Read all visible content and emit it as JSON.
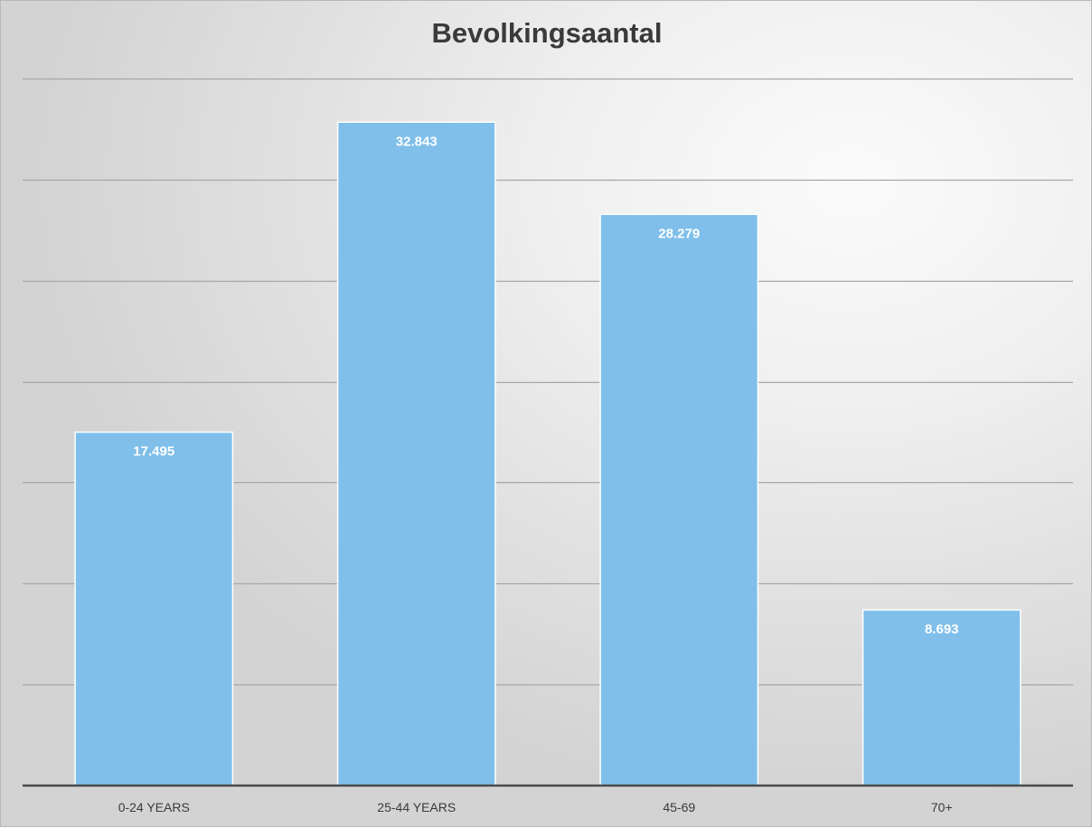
{
  "chart_data": {
    "type": "bar",
    "title": "Bevolkingsaantal",
    "categories": [
      "0-24 YEARS",
      "25-44 YEARS",
      "45-69",
      "70+"
    ],
    "values": [
      17495,
      32843,
      28279,
      8693
    ],
    "value_labels": [
      "17.495",
      "32.843",
      "28.279",
      "8.693"
    ],
    "ylim": [
      0,
      35000
    ],
    "y_major_unit": 5000,
    "grid": true,
    "y_axis_labels_shown": false,
    "legend": "none",
    "bar_color": "#7fbfea",
    "bar_border_color": "#ffffff",
    "label_color": "#ffffff"
  }
}
